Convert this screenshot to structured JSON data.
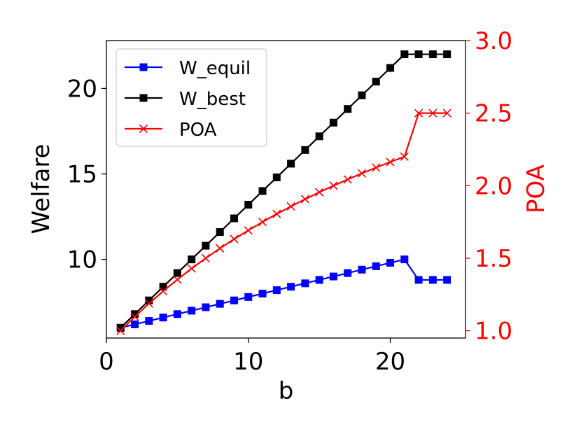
{
  "chart_data": {
    "type": "line",
    "xlabel": "b",
    "ylabel_left": "Welfare",
    "ylabel_right": "POA",
    "xlim": [
      0,
      25.3
    ],
    "ylim_left": [
      5.4,
      22.8
    ],
    "ylim_right": [
      0.95,
      3.0
    ],
    "x_ticks": [
      0,
      10,
      20
    ],
    "y_ticks_left": [
      10,
      15,
      20
    ],
    "y_ticks_right": [
      "1.0",
      "1.5",
      "2.0",
      "2.5",
      "3.0"
    ],
    "legend_position": "upper-left",
    "x": [
      1,
      2,
      3,
      4,
      5,
      6,
      7,
      8,
      9,
      10,
      11,
      12,
      13,
      14,
      15,
      16,
      17,
      18,
      19,
      20,
      21,
      22,
      23,
      24
    ],
    "series": [
      {
        "name": "W_equil",
        "axis": "left",
        "color": "#0000ff",
        "marker": "square",
        "values": [
          6.0,
          6.2,
          6.4,
          6.6,
          6.8,
          7.0,
          7.2,
          7.4,
          7.6,
          7.8,
          8.0,
          8.2,
          8.4,
          8.6,
          8.8,
          9.0,
          9.2,
          9.4,
          9.6,
          9.8,
          10.0,
          8.8,
          8.8,
          8.8
        ]
      },
      {
        "name": "W_best",
        "axis": "left",
        "color": "#000000",
        "marker": "square",
        "values": [
          6.0,
          6.8,
          7.6,
          8.4,
          9.2,
          10.0,
          10.8,
          11.6,
          12.4,
          13.2,
          14.0,
          14.8,
          15.6,
          16.4,
          17.2,
          18.0,
          18.8,
          19.6,
          20.4,
          21.2,
          22.0,
          22.0,
          22.0,
          22.0
        ]
      },
      {
        "name": "POA",
        "axis": "right",
        "color": "#ff0000",
        "marker": "x",
        "values": [
          1.0,
          1.097,
          1.188,
          1.273,
          1.353,
          1.429,
          1.5,
          1.568,
          1.632,
          1.692,
          1.75,
          1.805,
          1.857,
          1.907,
          1.955,
          2.0,
          2.043,
          2.085,
          2.125,
          2.163,
          2.2,
          2.5,
          2.5,
          2.5
        ]
      }
    ]
  }
}
